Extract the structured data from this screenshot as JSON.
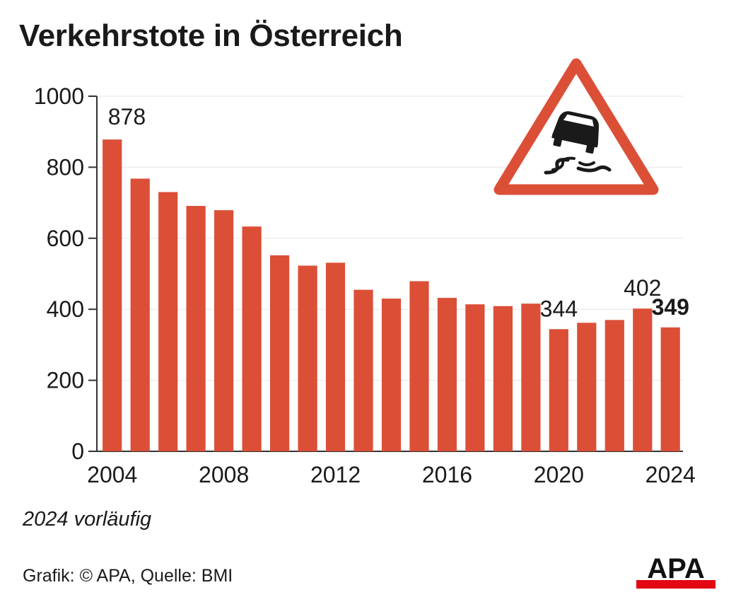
{
  "title": "Verkehrstote in Österreich",
  "note": "2024 vorläufig",
  "source": "Grafik: © APA, Quelle: BMI",
  "logo_text": "APA",
  "colors": {
    "bar": "#db4f37",
    "text": "#1a1a1a",
    "grid": "#e6e6e6",
    "axis": "#333333",
    "logo_red": "#e30613"
  },
  "icon": "slippery-road-warning-sign-icon",
  "chart_data": {
    "type": "bar",
    "title": "Verkehrstote in Österreich",
    "xlabel": "",
    "ylabel": "",
    "ylim": [
      0,
      1000
    ],
    "yticks": [
      0,
      200,
      400,
      600,
      800,
      1000
    ],
    "xtick_labels": [
      "2004",
      "2008",
      "2012",
      "2016",
      "2020",
      "2024"
    ],
    "grid": true,
    "categories": [
      "2004",
      "2005",
      "2006",
      "2007",
      "2008",
      "2009",
      "2010",
      "2011",
      "2012",
      "2013",
      "2014",
      "2015",
      "2016",
      "2017",
      "2018",
      "2019",
      "2020",
      "2021",
      "2022",
      "2023",
      "2024"
    ],
    "values": [
      878,
      768,
      730,
      691,
      679,
      633,
      552,
      523,
      531,
      455,
      430,
      479,
      432,
      414,
      409,
      416,
      344,
      362,
      370,
      402,
      349
    ],
    "data_labels": [
      {
        "category": "2004",
        "text": "878",
        "bold": false
      },
      {
        "category": "2020",
        "text": "344",
        "bold": false
      },
      {
        "category": "2023",
        "text": "402",
        "bold": false
      },
      {
        "category": "2024",
        "text": "349",
        "bold": true
      }
    ]
  }
}
